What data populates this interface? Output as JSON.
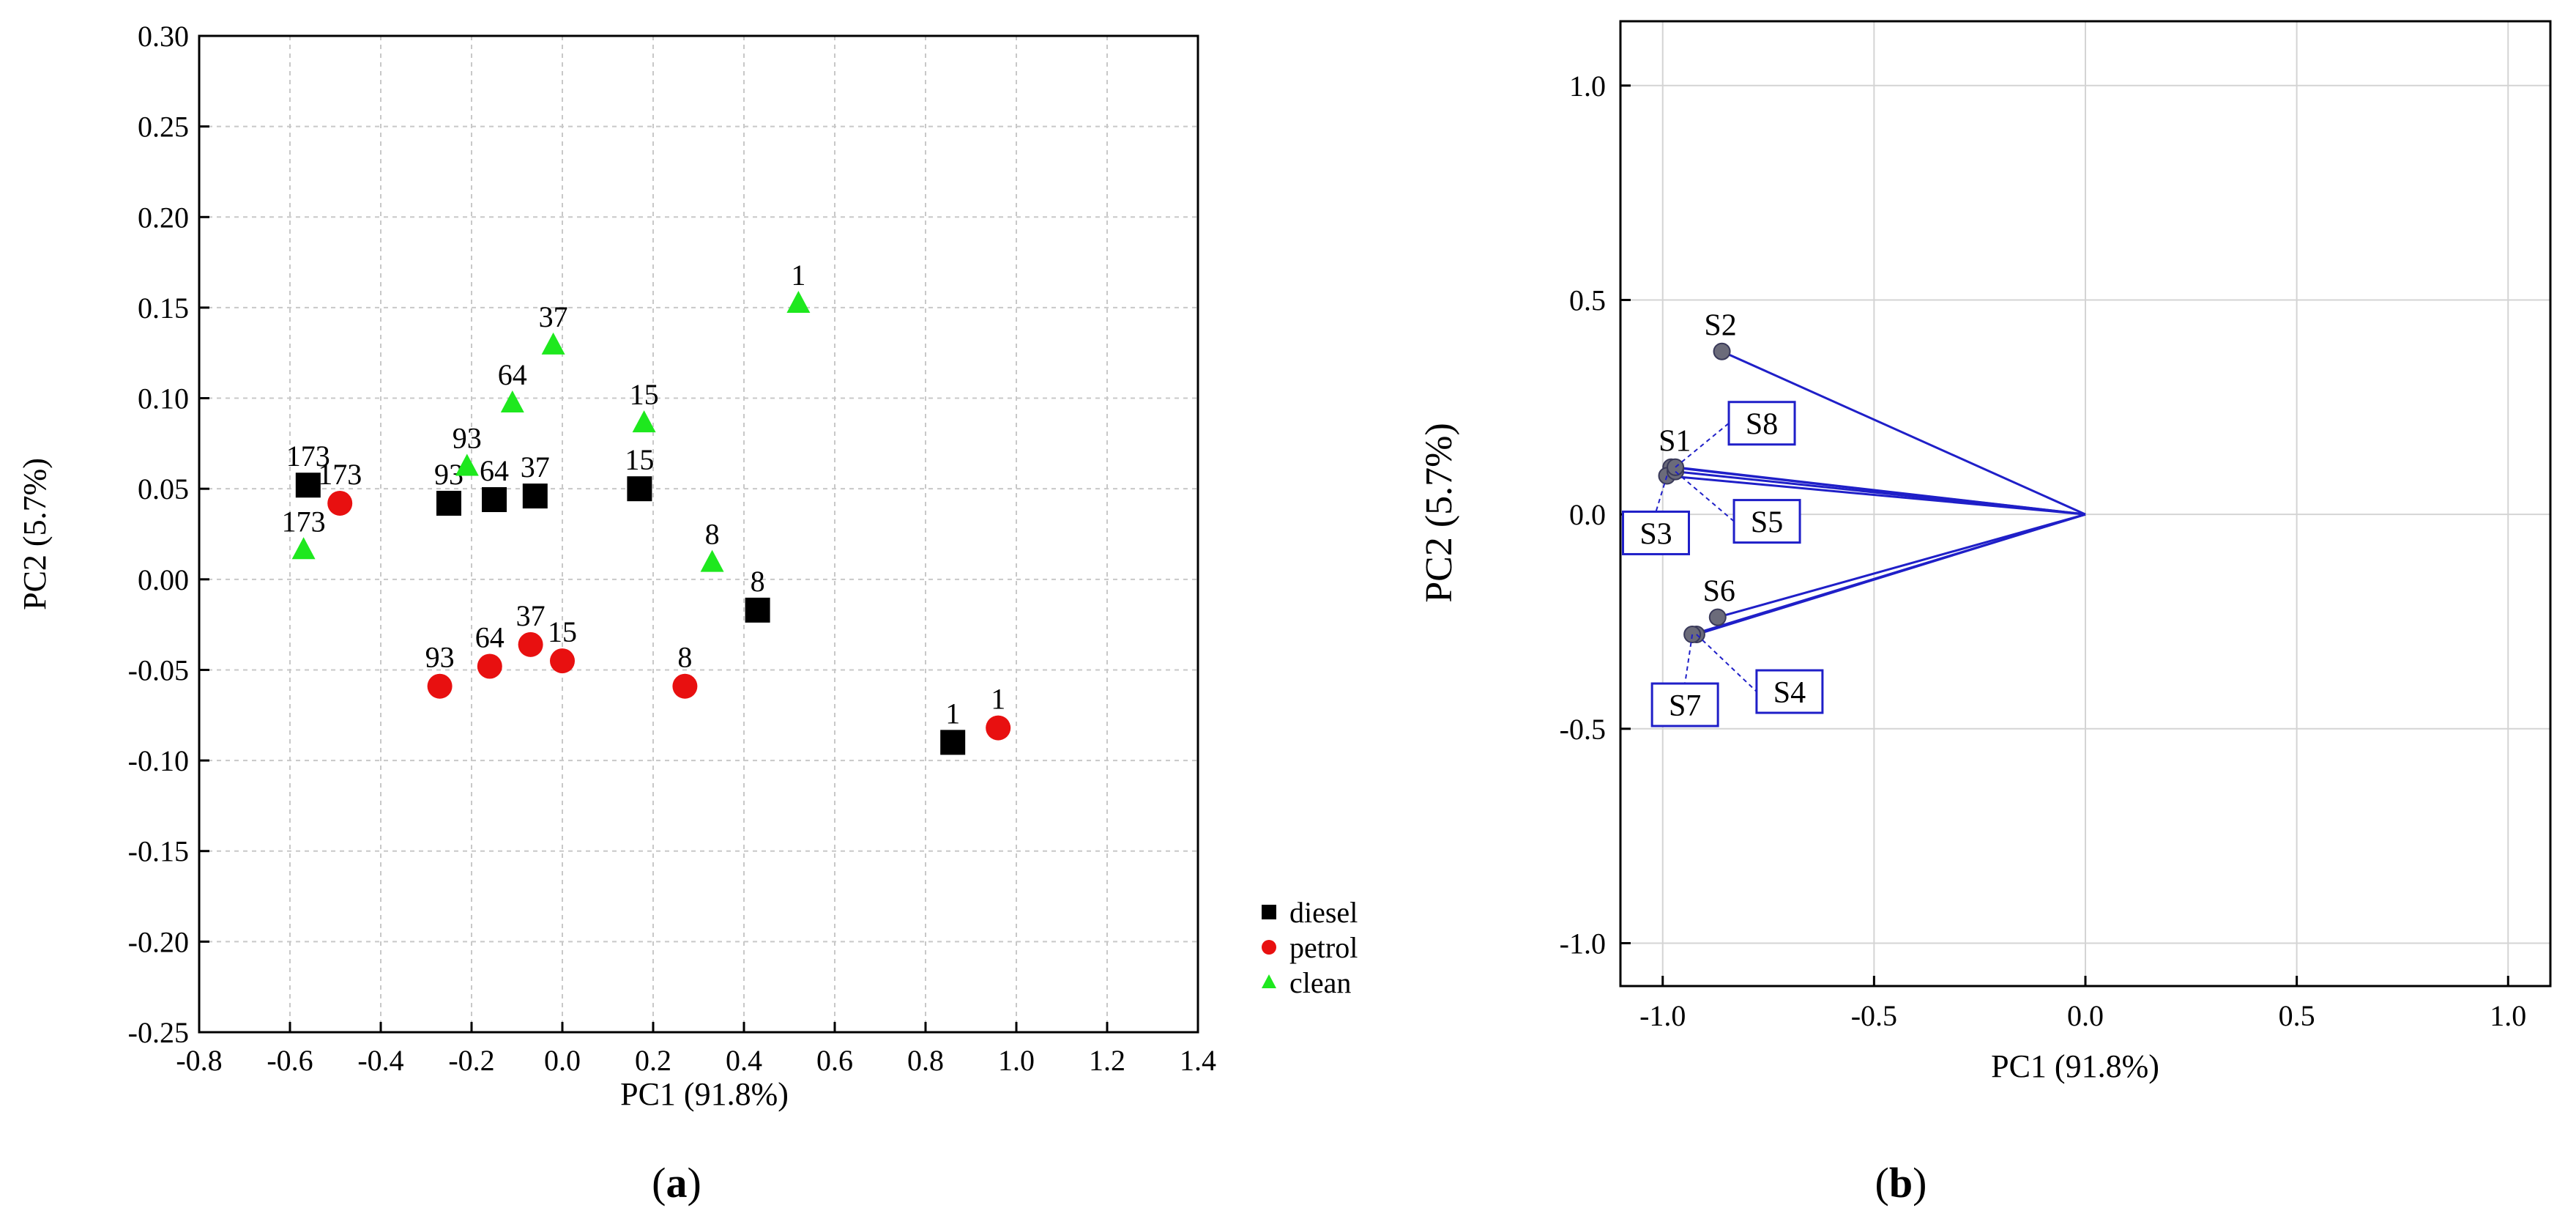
{
  "chart_data": [
    {
      "type": "scatter",
      "panel_label": "a",
      "title": "",
      "xlabel": "PC1 (91.8%)",
      "ylabel": "PC2 (5.7%)",
      "xlim": [
        -0.8,
        1.4
      ],
      "ylim": [
        -0.25,
        0.3
      ],
      "xticks": [
        "-0.8",
        "-0.6",
        "-0.4",
        "-0.2",
        "0.0",
        "0.2",
        "0.4",
        "0.6",
        "0.8",
        "1.0",
        "1.2",
        "1.4"
      ],
      "yticks": [
        "-0.25",
        "-0.20",
        "-0.15",
        "-0.10",
        "-0.05",
        "0.00",
        "0.05",
        "0.10",
        "0.15",
        "0.20",
        "0.25",
        "0.30"
      ],
      "grid": true,
      "legend_position": "right",
      "colors": {
        "diesel": "#000000",
        "petrol": "#e81010",
        "clean": "#1ee81e"
      },
      "series": [
        {
          "name": "diesel",
          "marker": "square",
          "points": [
            {
              "x": -0.56,
              "y": 0.052,
              "label": "173"
            },
            {
              "x": -0.25,
              "y": 0.042,
              "label": "93"
            },
            {
              "x": -0.15,
              "y": 0.044,
              "label": "64"
            },
            {
              "x": -0.06,
              "y": 0.046,
              "label": "37"
            },
            {
              "x": 0.17,
              "y": 0.05,
              "label": "15"
            },
            {
              "x": 0.43,
              "y": -0.017,
              "label": "8"
            },
            {
              "x": 0.86,
              "y": -0.09,
              "label": "1"
            }
          ]
        },
        {
          "name": "petrol",
          "marker": "circle",
          "points": [
            {
              "x": -0.49,
              "y": 0.042,
              "label": "173"
            },
            {
              "x": -0.27,
              "y": -0.059,
              "label": "93"
            },
            {
              "x": -0.16,
              "y": -0.048,
              "label": "64"
            },
            {
              "x": -0.07,
              "y": -0.036,
              "label": "37"
            },
            {
              "x": 0.0,
              "y": -0.045,
              "label": "15"
            },
            {
              "x": 0.27,
              "y": -0.059,
              "label": "8"
            },
            {
              "x": 0.96,
              "y": -0.082,
              "label": "1"
            }
          ]
        },
        {
          "name": "clean",
          "marker": "triangle",
          "points": [
            {
              "x": -0.57,
              "y": 0.016,
              "label": "173"
            },
            {
              "x": -0.21,
              "y": 0.062,
              "label": "93"
            },
            {
              "x": -0.11,
              "y": 0.097,
              "label": "64"
            },
            {
              "x": -0.02,
              "y": 0.129,
              "label": "37"
            },
            {
              "x": 0.18,
              "y": 0.086,
              "label": "15"
            },
            {
              "x": 0.33,
              "y": 0.009,
              "label": "8"
            },
            {
              "x": 0.52,
              "y": 0.152,
              "label": "1"
            }
          ]
        }
      ]
    },
    {
      "type": "scatter",
      "panel_label": "b",
      "title": "",
      "xlabel": "PC1 (91.8%)",
      "ylabel": "PC2 (5.7%)",
      "xlim": [
        -1.1,
        1.1
      ],
      "ylim": [
        -1.1,
        1.15
      ],
      "xticks": [
        "-1.0",
        "-0.5",
        "0.0",
        "0.5",
        "1.0"
      ],
      "yticks": [
        "-1.0",
        "-0.5",
        "0.0",
        "0.5",
        "1.0"
      ],
      "grid": true,
      "line_color": "#1f1fc8",
      "vectors": [
        {
          "name": "S1",
          "x": -0.98,
          "y": 0.11,
          "boxed": false
        },
        {
          "name": "S2",
          "x": -0.86,
          "y": 0.38,
          "boxed": false
        },
        {
          "name": "S3",
          "x": -0.99,
          "y": 0.09,
          "boxed": true
        },
        {
          "name": "S4",
          "x": -0.92,
          "y": -0.28,
          "boxed": true
        },
        {
          "name": "S5",
          "x": -0.97,
          "y": 0.1,
          "boxed": true
        },
        {
          "name": "S6",
          "x": -0.87,
          "y": -0.24,
          "boxed": false
        },
        {
          "name": "S7",
          "x": -0.93,
          "y": -0.28,
          "boxed": true
        },
        {
          "name": "S8",
          "x": -0.97,
          "y": 0.11,
          "boxed": true
        }
      ]
    }
  ]
}
